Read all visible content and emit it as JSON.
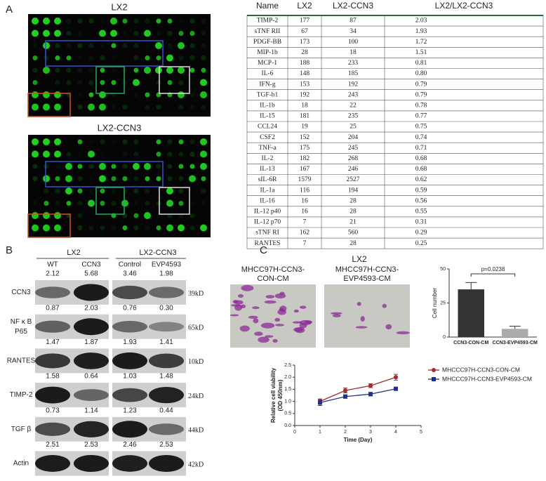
{
  "panel_labels": [
    "A",
    "B",
    "C"
  ],
  "arrays": [
    {
      "title": "LX2"
    },
    {
      "title": "LX2-CCN3"
    }
  ],
  "table": {
    "header": [
      "Name",
      "LX2",
      "LX2-CCN3",
      "LX2/LX2-CCN3"
    ],
    "rows": [
      [
        "TIMP-2",
        "177",
        "87",
        "2.03"
      ],
      [
        "sTNF RII",
        "67",
        "34",
        "1.93"
      ],
      [
        "PDGF-BB",
        "173",
        "100",
        "1.72"
      ],
      [
        "MIP-1b",
        "28",
        "18",
        "1.51"
      ],
      [
        "MCP-1",
        "188",
        "233",
        "0.81"
      ],
      [
        "IL-6",
        "148",
        "185",
        "0.80"
      ],
      [
        "IFN-g",
        "153",
        "192",
        "0.79"
      ],
      [
        "TGF-b1",
        "192",
        "243",
        "0.79"
      ],
      [
        "IL-1b",
        "18",
        "22",
        "0.78"
      ],
      [
        "IL-15",
        "181",
        "235",
        "0.77"
      ],
      [
        "CCL24",
        "19",
        "25",
        "0.75"
      ],
      [
        "CSF2",
        "152",
        "204",
        "0.74"
      ],
      [
        "TNF-a",
        "175",
        "245",
        "0.71"
      ],
      [
        "IL-2",
        "182",
        "268",
        "0.68"
      ],
      [
        "IL-13",
        "167",
        "246",
        "0.68"
      ],
      [
        "sIL-6R",
        "1579",
        "2527",
        "0.62"
      ],
      [
        "IL-1a",
        "116",
        "194",
        "0.59"
      ],
      [
        "IL-16",
        "16",
        "28",
        "0.56"
      ],
      [
        "IL-12 p40",
        "16",
        "28",
        "0.55"
      ],
      [
        "IL-12 p70",
        "7",
        "21",
        "0.31"
      ],
      [
        "sTNF RI",
        "162",
        "560",
        "0.29"
      ],
      [
        "RANTES",
        "7",
        "28",
        "0.25"
      ]
    ]
  },
  "blot": {
    "groups": [
      "LX2",
      "LX2-CCN3"
    ],
    "lanes": [
      "WT",
      "CCN3",
      "Control",
      "EVP4593"
    ],
    "rows": [
      {
        "name": [
          "CCN3"
        ],
        "values": [
          "2.12",
          "5.68",
          "3.46",
          "1.98"
        ],
        "size": "39kD"
      },
      {
        "name": [
          "NF κ B",
          "P65"
        ],
        "values": [
          "0.87",
          "2.03",
          "0.76",
          "0.30"
        ],
        "size": "65kD"
      },
      {
        "name": [
          "RANTES"
        ],
        "values": [
          "1.47",
          "1.87",
          "1.93",
          "1.41"
        ],
        "size": "10kD"
      },
      {
        "name": [
          "TIMP-2"
        ],
        "values": [
          "1.58",
          "0.64",
          "1.03",
          "1.48"
        ],
        "size": "24kD"
      },
      {
        "name": [
          "TGF β"
        ],
        "values": [
          "0.73",
          "1.14",
          "1.23",
          "0.44"
        ],
        "size": "44kD"
      },
      {
        "name": [
          "Actin"
        ],
        "values": [
          "2.51",
          "2.53",
          "2.46",
          "2.53"
        ],
        "size": "42kD"
      }
    ]
  },
  "migration": {
    "title": "LX2",
    "images": [
      {
        "label": [
          "MHCC97H-CCN3-",
          "CON-CM"
        ]
      },
      {
        "label": [
          "MHCC97H-CCN3-",
          "EVP4593-CM"
        ]
      }
    ]
  },
  "chart_data": [
    {
      "type": "bar",
      "y_label": "Cell number",
      "categories": [
        "CCN3-CON-CM",
        "CCN3-EVP4593-CM"
      ],
      "values": [
        35,
        6
      ],
      "errors": [
        5,
        2
      ],
      "colors": [
        "#333333",
        "#aaaaaa"
      ],
      "ylim": [
        0,
        50
      ],
      "yticks": [
        0,
        25,
        50
      ],
      "annotation": "p=0.0238"
    },
    {
      "type": "line",
      "x_label": "Time (Day)",
      "y_label": [
        "Relative cell viability",
        "(OD 450nm)"
      ],
      "x": [
        1,
        2,
        3,
        4
      ],
      "series": [
        {
          "name": "MHCCC97H-CCN3-CON-CM",
          "color": "#a52a2a",
          "values": [
            1.0,
            1.45,
            1.65,
            2.0
          ],
          "errors": [
            0.1,
            0.1,
            0.08,
            0.12
          ]
        },
        {
          "name": "MHCCC97H-CCN3-EVP4593-CM",
          "color": "#1f2f8f",
          "values": [
            0.95,
            1.2,
            1.3,
            1.52
          ],
          "errors": [
            0.12,
            0.07,
            0.07,
            0.06
          ]
        }
      ],
      "xlim": [
        0,
        5
      ],
      "xticks": [
        0,
        1,
        2,
        3,
        4,
        5
      ],
      "ylim": [
        0,
        2.5
      ],
      "yticks": [
        {
          "value": 0,
          "label": "0.0"
        },
        0.5,
        {
          "value": 1,
          "label": "1.0"
        },
        1.5,
        {
          "value": 2,
          "label": "2.0"
        },
        2.5
      ]
    }
  ]
}
